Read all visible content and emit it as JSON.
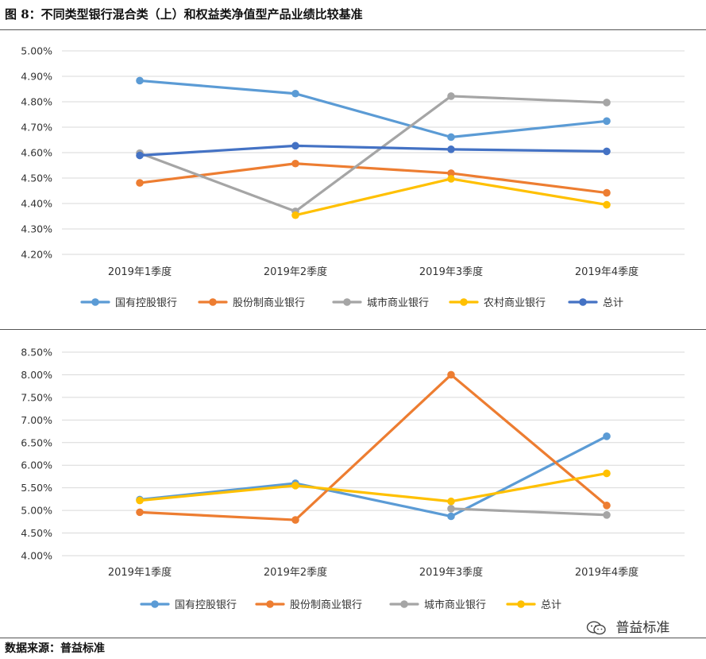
{
  "figure": {
    "title": "图 8：不同类型银行混合类（上）和权益类净值型产品业绩比较基准",
    "source_label": "数据来源：",
    "source_value": "普益标准",
    "watermark_text": "普益标准",
    "watermark_icon": "wechat-icon"
  },
  "chart_data": [
    {
      "type": "line",
      "title": "",
      "xlabel": "",
      "ylabel": "",
      "categories": [
        "2019年1季度",
        "2019年2季度",
        "2019年3季度",
        "2019年4季度"
      ],
      "ylim": [
        4.2,
        5.0
      ],
      "ytick_step": 0.1,
      "yticks": [
        "4.20%",
        "4.30%",
        "4.40%",
        "4.50%",
        "4.60%",
        "4.70%",
        "4.80%",
        "4.90%",
        "5.00%"
      ],
      "grid": true,
      "legend_position": "bottom",
      "series": [
        {
          "name": "国有控股银行",
          "color": "#5B9BD5",
          "values": [
            4.883,
            4.832,
            4.661,
            4.724
          ]
        },
        {
          "name": "股份制商业银行",
          "color": "#ED7D31",
          "values": [
            4.481,
            4.557,
            4.519,
            4.442
          ]
        },
        {
          "name": "城市商业银行",
          "color": "#A5A5A5",
          "values": [
            4.598,
            4.369,
            4.822,
            4.797
          ]
        },
        {
          "name": "农村商业银行",
          "color": "#FFC000",
          "values": [
            null,
            4.354,
            4.497,
            4.395
          ]
        },
        {
          "name": "总计",
          "color": "#4472C4",
          "values": [
            4.589,
            4.627,
            4.613,
            4.605
          ]
        }
      ]
    },
    {
      "type": "line",
      "title": "",
      "xlabel": "",
      "ylabel": "",
      "categories": [
        "2019年1季度",
        "2019年2季度",
        "2019年3季度",
        "2019年4季度"
      ],
      "ylim": [
        4.0,
        8.5
      ],
      "ytick_step": 0.5,
      "yticks": [
        "4.00%",
        "4.50%",
        "5.00%",
        "5.50%",
        "6.00%",
        "6.50%",
        "7.00%",
        "7.50%",
        "8.00%",
        "8.50%"
      ],
      "grid": true,
      "legend_position": "bottom",
      "series": [
        {
          "name": "国有控股银行",
          "color": "#5B9BD5",
          "values": [
            5.24,
            5.6,
            4.87,
            6.64
          ]
        },
        {
          "name": "股份制商业银行",
          "color": "#ED7D31",
          "values": [
            4.96,
            4.79,
            8.0,
            5.11
          ]
        },
        {
          "name": "城市商业银行",
          "color": "#A5A5A5",
          "values": [
            null,
            null,
            5.04,
            4.9
          ]
        },
        {
          "name": "总计",
          "color": "#FFC000",
          "values": [
            5.22,
            5.55,
            5.2,
            5.82
          ]
        }
      ]
    }
  ]
}
